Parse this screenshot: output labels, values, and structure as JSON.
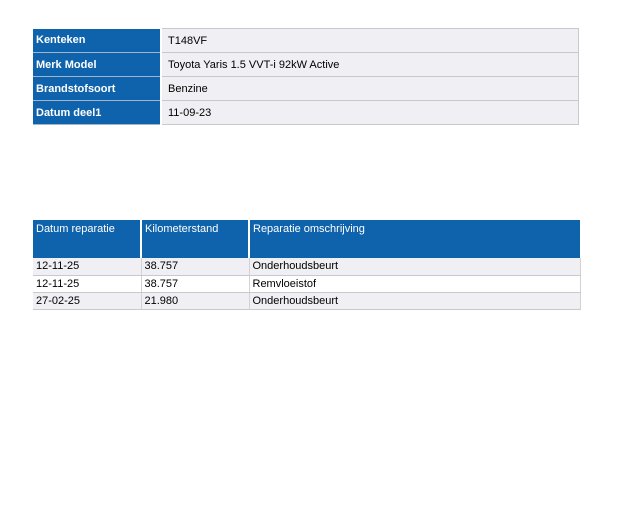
{
  "colors": {
    "accent_blue": "#0f63ac",
    "row_light_gray": "#f0f0f4",
    "row_white": "#ffffff",
    "border_gray": "#c9c9cd",
    "label_text": "#ffffff",
    "value_text": "#000000"
  },
  "vehicle_info": {
    "rows": [
      {
        "label": "Kenteken",
        "value": "T148VF"
      },
      {
        "label": "Merk Model",
        "value": "Toyota Yaris 1.5 VVT-i 92kW Active"
      },
      {
        "label": "Brandstofsoort",
        "value": "Benzine"
      },
      {
        "label": "Datum deel1",
        "value": "11-09-23"
      }
    ]
  },
  "repair_history": {
    "columns": [
      "Datum reparatie",
      "Kilometerstand",
      "Reparatie omschrijving"
    ],
    "rows": [
      [
        "12-11-25",
        "38.757",
        "Onderhoudsbeurt"
      ],
      [
        "12-11-25",
        "38.757",
        "Remvloeistof"
      ],
      [
        "27-02-25",
        "21.980",
        "Onderhoudsbeurt"
      ]
    ]
  }
}
